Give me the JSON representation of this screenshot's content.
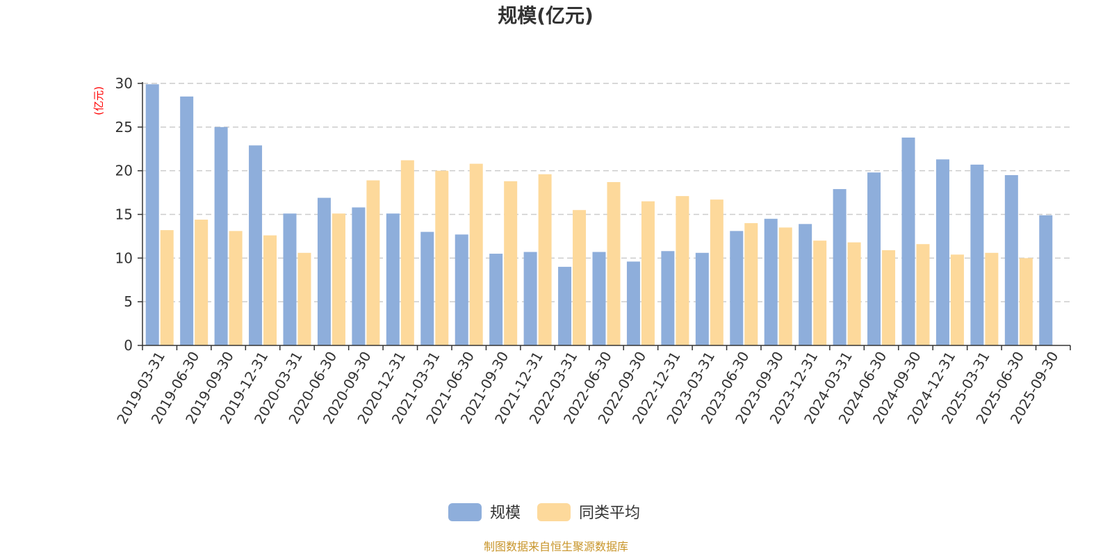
{
  "chart_data": {
    "type": "bar",
    "title": "规模(亿元)",
    "unit_label": "(亿元)",
    "categories": [
      "2019-03-31",
      "2019-06-30",
      "2019-09-30",
      "2019-12-31",
      "2020-03-31",
      "2020-06-30",
      "2020-09-30",
      "2020-12-31",
      "2021-03-31",
      "2021-06-30",
      "2021-09-30",
      "2021-12-31",
      "2022-03-31",
      "2022-06-30",
      "2022-09-30",
      "2022-12-31",
      "2023-03-31",
      "2023-06-30",
      "2023-09-30",
      "2023-12-31",
      "2024-03-31",
      "2024-06-30",
      "2024-09-30",
      "2024-12-31",
      "2025-03-31",
      "2025-06-30",
      "2025-09-30"
    ],
    "series": [
      {
        "name": "规模",
        "color": "#8eaedb",
        "values": [
          29.9,
          28.5,
          25.0,
          22.9,
          15.1,
          16.9,
          15.8,
          15.1,
          13.0,
          12.7,
          10.5,
          10.7,
          9.0,
          10.7,
          9.6,
          10.8,
          10.6,
          13.1,
          14.5,
          13.9,
          17.9,
          19.8,
          23.8,
          21.3,
          20.7,
          19.5,
          14.9
        ]
      },
      {
        "name": "同类平均",
        "color": "#fdd99b",
        "values": [
          13.2,
          14.4,
          13.1,
          12.6,
          10.6,
          15.1,
          18.9,
          21.2,
          20.0,
          20.8,
          18.8,
          19.6,
          15.5,
          18.7,
          16.5,
          17.1,
          16.7,
          14.0,
          13.5,
          12.0,
          11.8,
          10.9,
          11.6,
          10.4,
          10.6,
          10.0,
          null
        ]
      }
    ],
    "ylim": [
      0,
      30
    ],
    "yticks": [
      0,
      5,
      10,
      15,
      20,
      25,
      30
    ],
    "grid": true,
    "legend_position": "bottom-center",
    "source_note": "制图数据来自恒生聚源数据库",
    "colors": {
      "axis": "#333333",
      "grid": "#cccccc",
      "unit": "#ff0000",
      "source": "#c8952a"
    }
  }
}
